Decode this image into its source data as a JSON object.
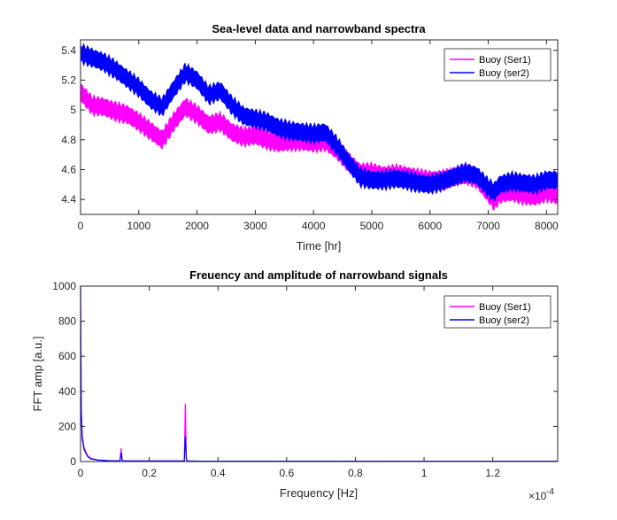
{
  "chart_data": [
    {
      "type": "line",
      "title": "Sea-level data and narrowband spectra",
      "xlabel": "Time [hr]",
      "ylabel": "",
      "xlim": [
        0,
        8192
      ],
      "ylim": [
        4.3,
        5.47
      ],
      "xticks": [
        0,
        1000,
        2000,
        3000,
        4000,
        5000,
        6000,
        7000,
        8000
      ],
      "xtick_labels": [
        "0",
        "1000",
        "2000",
        "3000",
        "4000",
        "5000",
        "6000",
        "7000",
        "8000"
      ],
      "yticks": [
        4.4,
        4.6,
        4.8,
        5.0,
        5.2,
        5.4
      ],
      "ytick_labels": [
        "4.4",
        "4.6",
        "4.8",
        "5",
        "5.2",
        "5.4"
      ],
      "grid": false,
      "legend": "top-right",
      "band_halfwidth": 0.055,
      "series": [
        {
          "name": "Buoy (Ser1)",
          "color": "#ff00ff",
          "x": [
            0,
            200,
            400,
            600,
            800,
            1000,
            1200,
            1400,
            1600,
            1800,
            2000,
            2200,
            2400,
            2600,
            2800,
            3000,
            3200,
            3400,
            3600,
            3800,
            4000,
            4200,
            4400,
            4600,
            4800,
            5000,
            5200,
            5400,
            5600,
            5800,
            6000,
            6200,
            6400,
            6600,
            6800,
            7000,
            7100,
            7200,
            7400,
            7600,
            7800,
            8000,
            8192
          ],
          "y": [
            5.12,
            5.03,
            5.02,
            4.99,
            4.97,
            4.92,
            4.86,
            4.8,
            4.92,
            5.02,
            4.97,
            4.9,
            4.92,
            4.85,
            4.82,
            4.83,
            4.8,
            4.78,
            4.79,
            4.79,
            4.78,
            4.79,
            4.73,
            4.65,
            4.58,
            4.58,
            4.56,
            4.57,
            4.56,
            4.54,
            4.53,
            4.53,
            4.55,
            4.57,
            4.54,
            4.44,
            4.39,
            4.44,
            4.45,
            4.43,
            4.42,
            4.45,
            4.43
          ]
        },
        {
          "name": "Buoy (ser2)",
          "color": "#0000ff",
          "x": [
            0,
            200,
            400,
            600,
            800,
            1000,
            1200,
            1400,
            1600,
            1800,
            2000,
            2200,
            2400,
            2600,
            2800,
            3000,
            3200,
            3400,
            3600,
            3800,
            4000,
            4200,
            4400,
            4600,
            4800,
            5000,
            5200,
            5400,
            5600,
            5800,
            6000,
            6200,
            6400,
            6600,
            6800,
            7000,
            7100,
            7200,
            7400,
            7600,
            7800,
            8000,
            8192
          ],
          "y": [
            5.38,
            5.35,
            5.32,
            5.27,
            5.21,
            5.15,
            5.07,
            5.02,
            5.14,
            5.25,
            5.2,
            5.1,
            5.13,
            5.03,
            4.96,
            4.94,
            4.92,
            4.88,
            4.86,
            4.85,
            4.84,
            4.85,
            4.76,
            4.65,
            4.55,
            4.53,
            4.53,
            4.54,
            4.53,
            4.51,
            4.5,
            4.52,
            4.55,
            4.58,
            4.56,
            4.48,
            4.45,
            4.5,
            4.52,
            4.51,
            4.5,
            4.53,
            4.53
          ]
        }
      ]
    },
    {
      "type": "line",
      "title": "Freuency and amplitude of narrowband signals",
      "xlabel": "Frequency [Hz]",
      "ylabel": "FFT amp [a.u.]",
      "x_multiplier": "×10",
      "x_multiplier_exponent": "-4",
      "xlim": [
        0,
        0.1389
      ],
      "ylim": [
        0,
        1000
      ],
      "xticks": [
        0,
        0.02,
        0.04,
        0.06,
        0.08,
        0.1,
        0.12
      ],
      "xtick_labels": [
        "0",
        "0.2",
        "0.4",
        "0.6",
        "0.8",
        "1",
        "1.2"
      ],
      "yticks": [
        0,
        200,
        400,
        600,
        800,
        1000
      ],
      "ytick_labels": [
        "0",
        "200",
        "400",
        "600",
        "800",
        "1000"
      ],
      "grid": false,
      "legend": "top-right",
      "series": [
        {
          "name": "Buoy (Ser1)",
          "color": "#ff00ff",
          "x": [
            0,
            0.0002,
            0.0005,
            0.001,
            0.002,
            0.003,
            0.005,
            0.008,
            0.0115,
            0.0118,
            0.0121,
            0.0124,
            0.015,
            0.025,
            0.0302,
            0.0305,
            0.0308,
            0.0311,
            0.035,
            0.06,
            0.1,
            0.1389
          ],
          "y": [
            1000,
            300,
            150,
            80,
            35,
            18,
            9,
            5,
            4,
            75,
            8,
            4,
            3,
            3,
            3,
            330,
            15,
            3,
            2,
            2,
            1.5,
            1.5
          ]
        },
        {
          "name": "Buoy (ser2)",
          "color": "#0000ff",
          "x": [
            0,
            0.0002,
            0.0005,
            0.001,
            0.002,
            0.003,
            0.005,
            0.008,
            0.0115,
            0.0118,
            0.0121,
            0.0124,
            0.015,
            0.025,
            0.0302,
            0.0305,
            0.0308,
            0.0311,
            0.035,
            0.06,
            0.1,
            0.1389
          ],
          "y": [
            1000,
            280,
            130,
            70,
            30,
            15,
            8,
            5,
            4,
            50,
            7,
            4,
            3,
            3,
            3,
            145,
            12,
            3,
            2,
            2,
            1.5,
            1.5
          ]
        }
      ]
    }
  ]
}
